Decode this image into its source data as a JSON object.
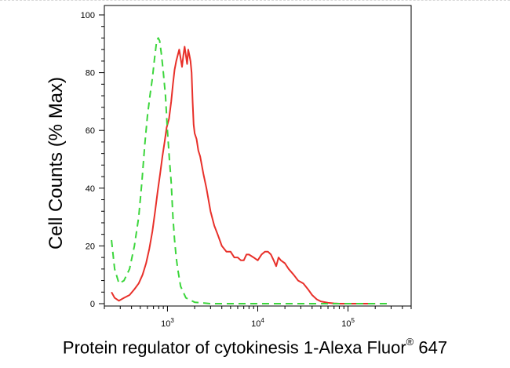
{
  "chart_data": {
    "type": "line",
    "x_scale": "log",
    "xlim": [
      200,
      500000
    ],
    "ylim": [
      0,
      100
    ],
    "xlabel_main": "Protein regulator of cytokinesis 1-Alexa Fluor",
    "xlabel_sup": "®",
    "xlabel_end": " 647",
    "ylabel": "Cell Counts (% Max)",
    "y_ticks": [
      0,
      20,
      40,
      60,
      80,
      100
    ],
    "x_ticks": [
      {
        "value": 1000,
        "base": "10",
        "exp": "3"
      },
      {
        "value": 10000,
        "base": "10",
        "exp": "4"
      },
      {
        "value": 100000,
        "base": "10",
        "exp": "5"
      }
    ],
    "series": [
      {
        "color": "#e8302a",
        "dash": "solid",
        "x": [
          240,
          260,
          290,
          330,
          380,
          430,
          480,
          530,
          580,
          630,
          680,
          730,
          780,
          830,
          880,
          930,
          980,
          1040,
          1100,
          1150,
          1200,
          1250,
          1300,
          1350,
          1400,
          1450,
          1500,
          1550,
          1600,
          1650,
          1700,
          1750,
          1800,
          1850,
          1900,
          1950,
          2000,
          2100,
          2200,
          2300,
          2500,
          2700,
          3000,
          3300,
          3600,
          4000,
          4500,
          5000,
          5500,
          6000,
          6500,
          7000,
          7500,
          8000,
          9000,
          10000,
          11000,
          12000,
          13000,
          14000,
          15000,
          16000,
          17000,
          18000,
          20000,
          22000,
          25000,
          28000,
          32000,
          36000,
          40000,
          45000,
          50000,
          60000,
          70000,
          80000,
          100000,
          150000,
          200000
        ],
        "y": [
          4,
          2,
          1,
          2,
          3,
          5,
          7,
          10,
          14,
          19,
          25,
          32,
          39,
          45,
          51,
          56,
          61,
          64,
          70,
          76,
          81,
          84,
          86,
          88,
          85,
          82,
          86,
          89,
          86,
          83,
          88,
          86,
          84,
          80,
          70,
          62,
          59,
          57,
          53,
          51,
          45,
          40,
          32,
          27,
          24,
          20,
          18,
          18,
          16,
          16,
          15,
          15,
          17,
          17,
          16,
          15,
          17,
          18,
          18,
          17,
          15,
          13,
          16,
          15,
          14,
          12,
          10,
          8,
          7,
          5,
          3,
          1.5,
          0.8,
          0.3,
          0.1,
          0,
          0,
          0,
          0
        ]
      },
      {
        "color": "#3cd63c",
        "dash": "dashed",
        "x": [
          240,
          260,
          290,
          330,
          380,
          430,
          480,
          520,
          560,
          600,
          640,
          680,
          720,
          760,
          790,
          820,
          860,
          900,
          950,
          1000,
          1050,
          1100,
          1150,
          1200,
          1250,
          1300,
          1400,
          1600,
          2000,
          3000,
          10000,
          100000,
          300000
        ],
        "y": [
          22,
          12,
          7,
          8,
          12,
          20,
          30,
          42,
          55,
          65,
          72,
          78,
          85,
          91,
          92,
          91,
          86,
          80,
          72,
          60,
          50,
          42,
          30,
          22,
          16,
          12,
          6,
          2,
          0.5,
          0,
          0,
          0,
          0
        ]
      }
    ]
  }
}
